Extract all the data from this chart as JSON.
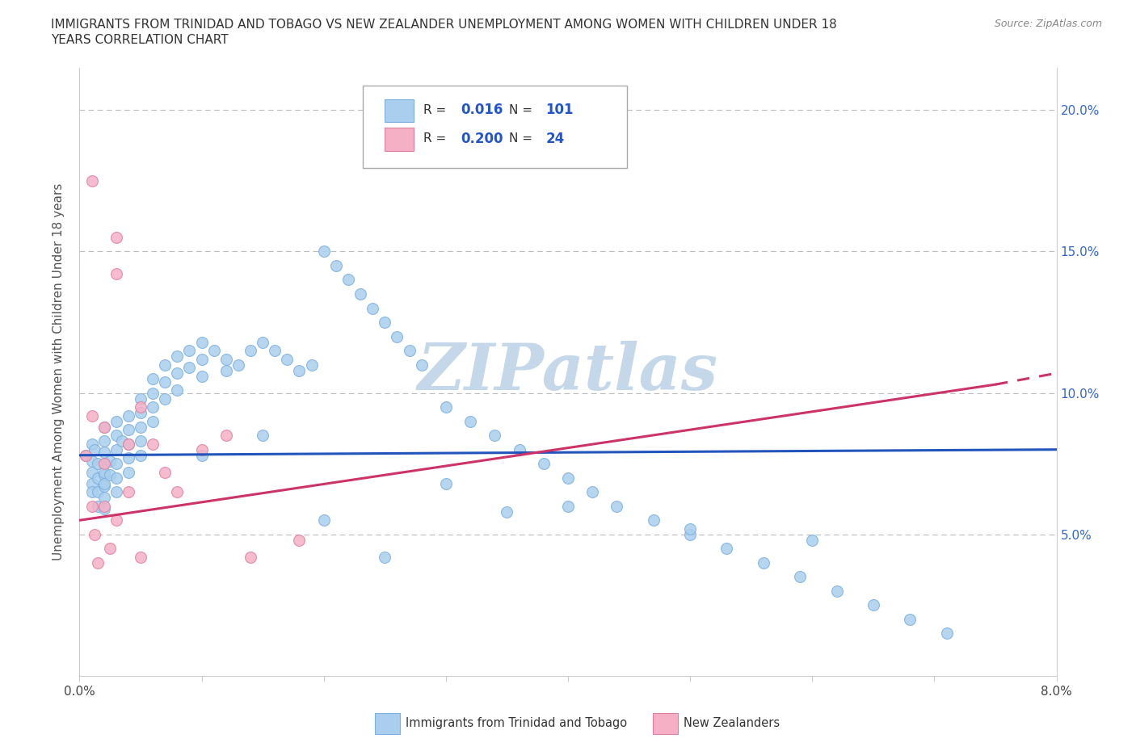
{
  "title_line1": "IMMIGRANTS FROM TRINIDAD AND TOBAGO VS NEW ZEALANDER UNEMPLOYMENT AMONG WOMEN WITH CHILDREN UNDER 18",
  "title_line2": "YEARS CORRELATION CHART",
  "source": "Source: ZipAtlas.com",
  "ylabel": "Unemployment Among Women with Children Under 18 years",
  "xlim": [
    0.0,
    0.08
  ],
  "ylim": [
    0.0,
    0.215
  ],
  "xticks": [
    0.0,
    0.01,
    0.02,
    0.03,
    0.04,
    0.05,
    0.06,
    0.07,
    0.08
  ],
  "xtick_labels": [
    "0.0%",
    "",
    "",
    "",
    "",
    "",
    "",
    "",
    "8.0%"
  ],
  "yticks": [
    0.0,
    0.05,
    0.1,
    0.15,
    0.2
  ],
  "ytick_labels": [
    "",
    "5.0%",
    "10.0%",
    "15.0%",
    "20.0%"
  ],
  "blue_color": "#aacfee",
  "blue_edge": "#7aafe0",
  "pink_color": "#f5b0c5",
  "pink_edge": "#e080a0",
  "trend_blue_color": "#2255bb",
  "trend_pink_color": "#cc3366",
  "legend_R1": "0.016",
  "legend_N1": "101",
  "legend_R2": "0.200",
  "legend_N2": "24",
  "watermark": "ZIPatlas",
  "watermark_color": "#c5d8ea",
  "blue_trend_x0": 0.0,
  "blue_trend_y0": 0.078,
  "blue_trend_x1": 0.08,
  "blue_trend_y1": 0.08,
  "pink_trend_x0": 0.0,
  "pink_trend_y0": 0.055,
  "pink_trend_x1": 0.075,
  "pink_trend_y1": 0.103,
  "pink_trend_dashed_x0": 0.075,
  "pink_trend_dashed_y0": 0.103,
  "pink_trend_dashed_x1": 0.08,
  "pink_trend_dashed_y1": 0.107,
  "blue_x": [
    0.0005,
    0.001,
    0.001,
    0.001,
    0.001,
    0.001,
    0.0012,
    0.0015,
    0.0015,
    0.0015,
    0.0015,
    0.002,
    0.002,
    0.002,
    0.002,
    0.002,
    0.002,
    0.002,
    0.002,
    0.002,
    0.002,
    0.0025,
    0.0025,
    0.003,
    0.003,
    0.003,
    0.003,
    0.003,
    0.003,
    0.0035,
    0.004,
    0.004,
    0.004,
    0.004,
    0.004,
    0.005,
    0.005,
    0.005,
    0.005,
    0.005,
    0.006,
    0.006,
    0.006,
    0.006,
    0.007,
    0.007,
    0.007,
    0.008,
    0.008,
    0.008,
    0.009,
    0.009,
    0.01,
    0.01,
    0.01,
    0.011,
    0.012,
    0.012,
    0.013,
    0.014,
    0.015,
    0.016,
    0.017,
    0.018,
    0.019,
    0.02,
    0.021,
    0.022,
    0.023,
    0.024,
    0.025,
    0.026,
    0.027,
    0.028,
    0.03,
    0.032,
    0.034,
    0.036,
    0.038,
    0.04,
    0.042,
    0.044,
    0.047,
    0.05,
    0.053,
    0.056,
    0.059,
    0.062,
    0.065,
    0.068,
    0.071,
    0.05,
    0.06,
    0.04,
    0.03,
    0.02,
    0.015,
    0.01,
    0.025,
    0.035
  ],
  "blue_y": [
    0.078,
    0.082,
    0.076,
    0.072,
    0.068,
    0.065,
    0.08,
    0.075,
    0.07,
    0.065,
    0.06,
    0.088,
    0.083,
    0.079,
    0.075,
    0.071,
    0.067,
    0.063,
    0.059,
    0.072,
    0.068,
    0.076,
    0.071,
    0.09,
    0.085,
    0.08,
    0.075,
    0.07,
    0.065,
    0.083,
    0.092,
    0.087,
    0.082,
    0.077,
    0.072,
    0.098,
    0.093,
    0.088,
    0.083,
    0.078,
    0.105,
    0.1,
    0.095,
    0.09,
    0.11,
    0.104,
    0.098,
    0.113,
    0.107,
    0.101,
    0.115,
    0.109,
    0.118,
    0.112,
    0.106,
    0.115,
    0.112,
    0.108,
    0.11,
    0.115,
    0.118,
    0.115,
    0.112,
    0.108,
    0.11,
    0.15,
    0.145,
    0.14,
    0.135,
    0.13,
    0.125,
    0.12,
    0.115,
    0.11,
    0.095,
    0.09,
    0.085,
    0.08,
    0.075,
    0.07,
    0.065,
    0.06,
    0.055,
    0.05,
    0.045,
    0.04,
    0.035,
    0.03,
    0.025,
    0.02,
    0.015,
    0.052,
    0.048,
    0.06,
    0.068,
    0.055,
    0.085,
    0.078,
    0.042,
    0.058
  ],
  "pink_x": [
    0.0005,
    0.001,
    0.001,
    0.001,
    0.0012,
    0.0015,
    0.002,
    0.002,
    0.002,
    0.0025,
    0.003,
    0.003,
    0.003,
    0.004,
    0.004,
    0.005,
    0.005,
    0.006,
    0.007,
    0.008,
    0.01,
    0.012,
    0.014,
    0.018
  ],
  "pink_y": [
    0.078,
    0.175,
    0.092,
    0.06,
    0.05,
    0.04,
    0.088,
    0.075,
    0.06,
    0.045,
    0.155,
    0.142,
    0.055,
    0.082,
    0.065,
    0.095,
    0.042,
    0.082,
    0.072,
    0.065,
    0.08,
    0.085,
    0.042,
    0.048
  ]
}
